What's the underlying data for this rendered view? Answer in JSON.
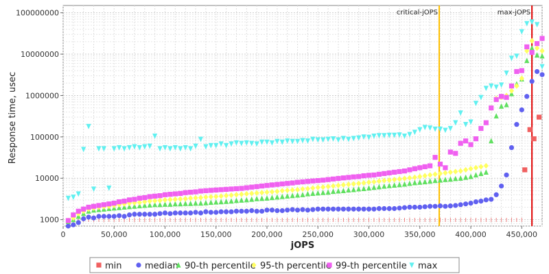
{
  "chart_data": {
    "type": "scatter",
    "xlabel": "jOPS",
    "ylabel": "Response time, usec",
    "xlim": [
      0,
      470000
    ],
    "ylim": [
      700,
      150000000
    ],
    "y_scale": "log",
    "grid": true,
    "legend_position": "bottom",
    "x_ticks": [
      "0",
      "50,000",
      "100,000",
      "150,000",
      "200,000",
      "250,000",
      "300,000",
      "350,000",
      "400,000",
      "450,000"
    ],
    "x_tick_values": [
      0,
      50000,
      100000,
      150000,
      200000,
      250000,
      300000,
      350000,
      400000,
      450000
    ],
    "y_ticks": [
      "1000",
      "10000",
      "100000",
      "1000000",
      "10000000",
      "100000000"
    ],
    "y_tick_values": [
      1000,
      10000,
      100000,
      1000000,
      10000000,
      100000000
    ],
    "vertical_lines": [
      {
        "label": "critical-jOPS",
        "x": 369000,
        "color": "#ffc000"
      },
      {
        "label": "max-jOPS",
        "x": 460000,
        "color": "#e00000"
      }
    ],
    "series": [
      {
        "name": "min",
        "marker": "square",
        "color": "#f06060",
        "x": [
          453000,
          458000,
          462000,
          467000
        ],
        "y": [
          16000,
          150000,
          90000,
          300000
        ]
      },
      {
        "name": "median",
        "marker": "circle",
        "color": "#6060f0",
        "x": [
          5000,
          10000,
          15000,
          20000,
          25000,
          30000,
          35000,
          40000,
          45000,
          50000,
          55000,
          60000,
          65000,
          70000,
          75000,
          80000,
          85000,
          90000,
          95000,
          100000,
          105000,
          110000,
          115000,
          120000,
          125000,
          130000,
          135000,
          140000,
          145000,
          150000,
          155000,
          160000,
          165000,
          170000,
          175000,
          180000,
          185000,
          190000,
          195000,
          200000,
          205000,
          210000,
          215000,
          220000,
          225000,
          230000,
          235000,
          240000,
          245000,
          250000,
          255000,
          260000,
          265000,
          270000,
          275000,
          280000,
          285000,
          290000,
          295000,
          300000,
          305000,
          310000,
          315000,
          320000,
          325000,
          330000,
          335000,
          340000,
          345000,
          350000,
          355000,
          360000,
          365000,
          370000,
          375000,
          380000,
          385000,
          390000,
          395000,
          400000,
          405000,
          410000,
          415000,
          420000,
          425000,
          430000,
          435000,
          440000,
          445000,
          450000,
          455000,
          460000,
          465000,
          470000
        ],
        "y": [
          700,
          750,
          850,
          1050,
          1150,
          1100,
          1200,
          1200,
          1200,
          1200,
          1250,
          1200,
          1300,
          1350,
          1350,
          1350,
          1350,
          1350,
          1400,
          1450,
          1400,
          1450,
          1450,
          1450,
          1450,
          1500,
          1450,
          1550,
          1500,
          1500,
          1550,
          1550,
          1550,
          1600,
          1600,
          1600,
          1650,
          1600,
          1600,
          1700,
          1700,
          1650,
          1650,
          1700,
          1750,
          1700,
          1750,
          1700,
          1750,
          1800,
          1800,
          1800,
          1800,
          1800,
          1800,
          1800,
          1800,
          1800,
          1800,
          1800,
          1800,
          1850,
          1850,
          1850,
          1850,
          1900,
          1950,
          2000,
          2000,
          2000,
          2050,
          2100,
          2100,
          2150,
          2100,
          2150,
          2200,
          2300,
          2400,
          2500,
          2700,
          2800,
          3000,
          3100,
          4000,
          6500,
          12000,
          55000,
          200000,
          450000,
          950000,
          2200000,
          3800000,
          3200000
        ]
      },
      {
        "name": "90-th percentile",
        "marker": "triangle-up",
        "color": "#60e060",
        "x": [
          5000,
          10000,
          15000,
          20000,
          25000,
          30000,
          35000,
          40000,
          45000,
          50000,
          55000,
          60000,
          65000,
          70000,
          75000,
          80000,
          85000,
          90000,
          95000,
          100000,
          105000,
          110000,
          115000,
          120000,
          125000,
          130000,
          135000,
          140000,
          145000,
          150000,
          155000,
          160000,
          165000,
          170000,
          175000,
          180000,
          185000,
          190000,
          195000,
          200000,
          205000,
          210000,
          215000,
          220000,
          225000,
          230000,
          235000,
          240000,
          245000,
          250000,
          255000,
          260000,
          265000,
          270000,
          275000,
          280000,
          285000,
          290000,
          295000,
          300000,
          305000,
          310000,
          315000,
          320000,
          325000,
          330000,
          335000,
          340000,
          345000,
          350000,
          355000,
          360000,
          365000,
          370000,
          375000,
          380000,
          385000,
          390000,
          395000,
          400000,
          405000,
          410000,
          415000,
          420000,
          425000,
          430000,
          435000,
          440000,
          445000,
          450000,
          455000,
          460000,
          465000,
          470000
        ],
        "y": [
          900,
          1000,
          1200,
          1400,
          1600,
          1700,
          1750,
          1800,
          1850,
          1900,
          1950,
          2000,
          2050,
          2100,
          2150,
          2200,
          2250,
          2300,
          2300,
          2350,
          2350,
          2400,
          2400,
          2450,
          2450,
          2500,
          2500,
          2550,
          2600,
          2650,
          2700,
          2750,
          2800,
          2900,
          2950,
          3000,
          3100,
          3200,
          3250,
          3300,
          3400,
          3500,
          3600,
          3700,
          3800,
          3900,
          4000,
          4200,
          4300,
          4400,
          4500,
          4600,
          4800,
          4900,
          5000,
          5200,
          5300,
          5500,
          5600,
          5800,
          6000,
          6200,
          6400,
          6600,
          6800,
          7000,
          7200,
          7500,
          7800,
          8000,
          8200,
          8500,
          8800,
          9000,
          9300,
          9500,
          9800,
          10000,
          10500,
          11000,
          12000,
          13000,
          14000,
          80000,
          320000,
          550000,
          600000,
          1100000,
          1900000,
          2500000,
          7000000,
          14000000,
          9500000,
          9000000
        ]
      },
      {
        "name": "95-th percentile",
        "marker": "diamond",
        "color": "#ffff60",
        "x": [
          5000,
          10000,
          15000,
          20000,
          25000,
          30000,
          35000,
          40000,
          45000,
          50000,
          55000,
          60000,
          65000,
          70000,
          75000,
          80000,
          85000,
          90000,
          95000,
          100000,
          105000,
          110000,
          115000,
          120000,
          125000,
          130000,
          135000,
          140000,
          145000,
          150000,
          155000,
          160000,
          165000,
          170000,
          175000,
          180000,
          185000,
          190000,
          195000,
          200000,
          205000,
          210000,
          215000,
          220000,
          225000,
          230000,
          235000,
          240000,
          245000,
          250000,
          255000,
          260000,
          265000,
          270000,
          275000,
          280000,
          285000,
          290000,
          295000,
          300000,
          305000,
          310000,
          315000,
          320000,
          325000,
          330000,
          335000,
          340000,
          345000,
          350000,
          355000,
          360000,
          365000,
          370000,
          375000,
          380000,
          385000,
          390000,
          395000,
          400000,
          405000,
          410000,
          415000,
          420000,
          425000,
          430000,
          435000,
          440000,
          445000,
          450000,
          455000,
          460000,
          465000,
          470000
        ],
        "y": [
          950,
          1100,
          1400,
          1600,
          1800,
          1900,
          2000,
          2050,
          2100,
          2200,
          2300,
          2400,
          2500,
          2550,
          2600,
          2700,
          2800,
          2850,
          2900,
          3000,
          3050,
          3100,
          3150,
          3200,
          3300,
          3350,
          3400,
          3500,
          3550,
          3600,
          3700,
          3800,
          3900,
          4000,
          4100,
          4200,
          4300,
          4400,
          4500,
          4600,
          4700,
          4800,
          5000,
          5100,
          5200,
          5300,
          5500,
          5600,
          5800,
          6000,
          6100,
          6300,
          6500,
          6700,
          6900,
          7100,
          7300,
          7500,
          7700,
          8000,
          8200,
          8500,
          8800,
          9000,
          9300,
          9600,
          9900,
          10200,
          10500,
          11000,
          11500,
          12000,
          12500,
          13000,
          13500,
          14000,
          14500,
          15000,
          16000,
          17000,
          18000,
          19000,
          20000,
          500000,
          850000,
          900000,
          1000000,
          1300000,
          1700000,
          2600000,
          12000000,
          21000000,
          14000000,
          12000000
        ]
      },
      {
        "name": "99-th percentile",
        "marker": "square",
        "color": "#f060f0",
        "x": [
          5000,
          10000,
          15000,
          20000,
          25000,
          30000,
          35000,
          40000,
          45000,
          50000,
          55000,
          60000,
          65000,
          70000,
          75000,
          80000,
          85000,
          90000,
          95000,
          100000,
          105000,
          110000,
          115000,
          120000,
          125000,
          130000,
          135000,
          140000,
          145000,
          150000,
          155000,
          160000,
          165000,
          170000,
          175000,
          180000,
          185000,
          190000,
          195000,
          200000,
          205000,
          210000,
          215000,
          220000,
          225000,
          230000,
          235000,
          240000,
          245000,
          250000,
          255000,
          260000,
          265000,
          270000,
          275000,
          280000,
          285000,
          290000,
          295000,
          300000,
          305000,
          310000,
          315000,
          320000,
          325000,
          330000,
          335000,
          340000,
          345000,
          350000,
          355000,
          360000,
          365000,
          370000,
          375000,
          380000,
          385000,
          390000,
          395000,
          400000,
          405000,
          410000,
          415000,
          420000,
          425000,
          430000,
          435000,
          440000,
          445000,
          450000,
          455000,
          460000,
          465000,
          470000
        ],
        "y": [
          950,
          1300,
          1600,
          1800,
          2000,
          2100,
          2200,
          2300,
          2400,
          2500,
          2700,
          2800,
          3000,
          3100,
          3300,
          3400,
          3600,
          3700,
          3800,
          4000,
          4100,
          4200,
          4300,
          4500,
          4600,
          4700,
          4900,
          5000,
          5100,
          5200,
          5300,
          5400,
          5500,
          5600,
          5700,
          5900,
          6100,
          6300,
          6500,
          6700,
          6900,
          7100,
          7300,
          7500,
          7700,
          8000,
          8200,
          8400,
          8600,
          8800,
          9000,
          9300,
          9600,
          9900,
          10200,
          10500,
          10800,
          11000,
          11500,
          11800,
          12000,
          12500,
          13000,
          13500,
          14000,
          14500,
          15000,
          16000,
          17000,
          18000,
          19000,
          20000,
          32000,
          22000,
          18000,
          43000,
          40000,
          70000,
          80000,
          65000,
          90000,
          160000,
          220000,
          500000,
          800000,
          950000,
          900000,
          1700000,
          3800000,
          4000000,
          15000000,
          11000000,
          18000000,
          24000000
        ]
      },
      {
        "name": "max",
        "marker": "triangle-down",
        "color": "#60f0f0",
        "x": [
          5000,
          10000,
          15000,
          20000,
          25000,
          30000,
          35000,
          40000,
          45000,
          50000,
          55000,
          60000,
          65000,
          70000,
          75000,
          80000,
          85000,
          90000,
          95000,
          100000,
          105000,
          110000,
          115000,
          120000,
          125000,
          130000,
          135000,
          140000,
          145000,
          150000,
          155000,
          160000,
          165000,
          170000,
          175000,
          180000,
          185000,
          190000,
          195000,
          200000,
          205000,
          210000,
          215000,
          220000,
          225000,
          230000,
          235000,
          240000,
          245000,
          250000,
          255000,
          260000,
          265000,
          270000,
          275000,
          280000,
          285000,
          290000,
          295000,
          300000,
          305000,
          310000,
          315000,
          320000,
          325000,
          330000,
          335000,
          340000,
          345000,
          350000,
          355000,
          360000,
          365000,
          370000,
          375000,
          380000,
          385000,
          390000,
          395000,
          400000,
          405000,
          410000,
          415000,
          420000,
          425000,
          430000,
          435000,
          440000,
          445000,
          450000,
          455000,
          460000,
          465000,
          470000
        ],
        "y": [
          3300,
          3500,
          4200,
          50000,
          180000,
          5500,
          52000,
          52000,
          5800,
          52000,
          55000,
          52000,
          55000,
          58000,
          55000,
          58000,
          60000,
          105000,
          52000,
          55000,
          52000,
          55000,
          52000,
          55000,
          52000,
          60000,
          88000,
          58000,
          62000,
          62000,
          68000,
          62000,
          68000,
          72000,
          70000,
          72000,
          70000,
          68000,
          75000,
          75000,
          72000,
          78000,
          75000,
          80000,
          78000,
          78000,
          82000,
          80000,
          88000,
          85000,
          85000,
          88000,
          90000,
          85000,
          92000,
          88000,
          92000,
          95000,
          100000,
          98000,
          105000,
          108000,
          108000,
          110000,
          110000,
          112000,
          105000,
          115000,
          130000,
          150000,
          170000,
          165000,
          155000,
          155000,
          145000,
          160000,
          220000,
          380000,
          200000,
          230000,
          650000,
          900000,
          1500000,
          1700000,
          1600000,
          1800000,
          3500000,
          8000000,
          9000000,
          35000000,
          55000000,
          60000000,
          52000000,
          5000000
        ]
      }
    ]
  }
}
